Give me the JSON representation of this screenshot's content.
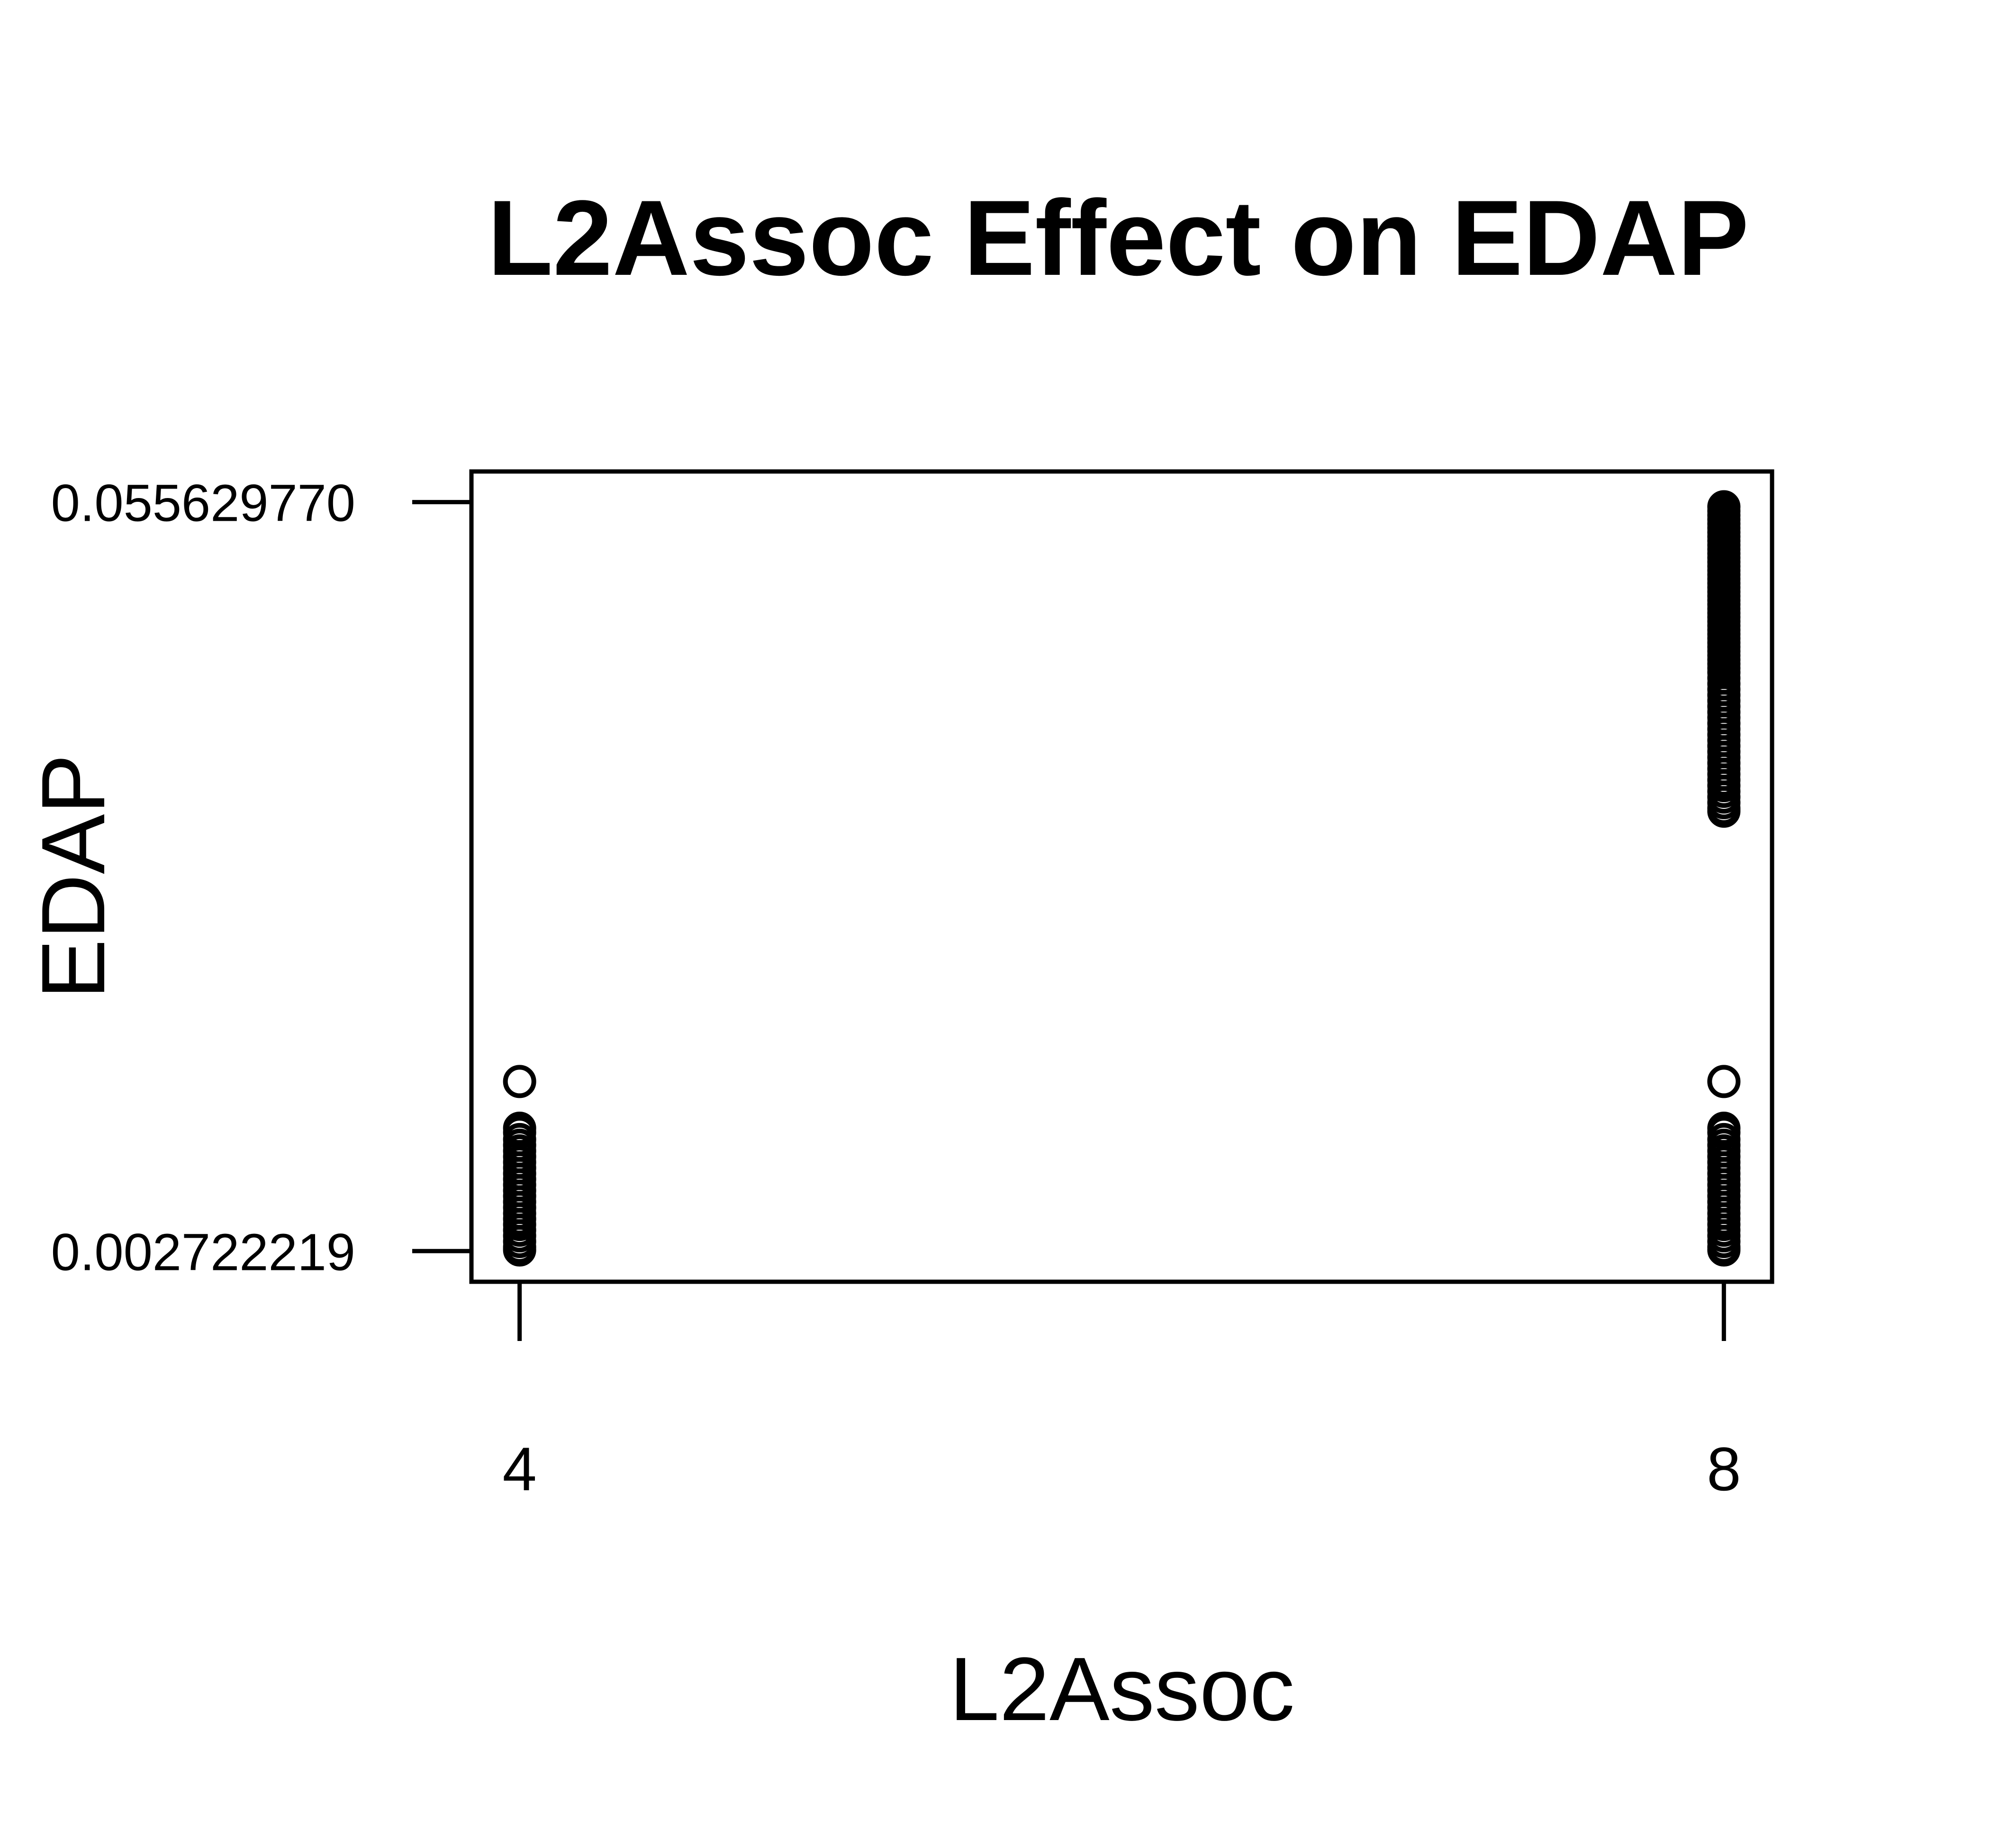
{
  "chart_data": {
    "type": "scatter",
    "title": "L2Assoc Effect on EDAP",
    "xlabel": "L2Assoc",
    "ylabel": "EDAP",
    "x_ticks": [
      "4",
      "8"
    ],
    "y_ticks": [
      "0.002722219",
      "0.055629770"
    ],
    "x_tick_values": [
      4,
      8
    ],
    "y_tick_values": [
      0.002722219,
      0.05562977
    ],
    "xlim": [
      3.84,
      8.16
    ],
    "ylim": [
      0.000555,
      0.057795
    ],
    "grid": false,
    "legend": "none",
    "series": [
      {
        "x": [
          4,
          4,
          4,
          4,
          4,
          4,
          4,
          4,
          4,
          4,
          4,
          4,
          4,
          4,
          4,
          4,
          4,
          4,
          4,
          4,
          4,
          4,
          4,
          4
        ],
        "y": [
          0.0147,
          0.0114,
          0.0111,
          0.0106,
          0.0102,
          0.0098,
          0.0094,
          0.009,
          0.0086,
          0.0082,
          0.0078,
          0.0074,
          0.007,
          0.0066,
          0.0062,
          0.0058,
          0.0054,
          0.005,
          0.0046,
          0.0042,
          0.0038,
          0.0034,
          0.003,
          0.0028
        ]
      },
      {
        "x": [
          8,
          8,
          8,
          8,
          8,
          8,
          8,
          8,
          8,
          8,
          8,
          8,
          8,
          8,
          8,
          8,
          8,
          8,
          8,
          8,
          8,
          8,
          8,
          8
        ],
        "y": [
          0.0147,
          0.0114,
          0.0111,
          0.0106,
          0.0102,
          0.0098,
          0.0094,
          0.009,
          0.0086,
          0.0082,
          0.0078,
          0.0074,
          0.007,
          0.0066,
          0.0062,
          0.0058,
          0.0054,
          0.005,
          0.0046,
          0.0042,
          0.0038,
          0.0034,
          0.003,
          0.0028
        ]
      },
      {
        "x": [
          8,
          8,
          8,
          8,
          8,
          8,
          8,
          8,
          8,
          8,
          8,
          8,
          8,
          8,
          8,
          8,
          8,
          8,
          8,
          8,
          8,
          8,
          8,
          8,
          8,
          8,
          8,
          8,
          8,
          8,
          8,
          8,
          8,
          8,
          8,
          8,
          8,
          8,
          8,
          8,
          8,
          8,
          8,
          8,
          8,
          8,
          8,
          8,
          8,
          8,
          8,
          8,
          8,
          8,
          8,
          8,
          8,
          8,
          8,
          8,
          8,
          8,
          8,
          8,
          8
        ],
        "y": [
          0.0553,
          0.055,
          0.0547,
          0.0544,
          0.0541,
          0.0538,
          0.0535,
          0.0532,
          0.0529,
          0.0526,
          0.0523,
          0.052,
          0.0517,
          0.0514,
          0.0511,
          0.0508,
          0.0505,
          0.0502,
          0.0499,
          0.0496,
          0.0493,
          0.049,
          0.0487,
          0.0484,
          0.0481,
          0.0478,
          0.0475,
          0.0472,
          0.0469,
          0.0466,
          0.0463,
          0.046,
          0.0457,
          0.0454,
          0.0451,
          0.0448,
          0.0445,
          0.0442,
          0.0439,
          0.0436,
          0.0432,
          0.0428,
          0.0424,
          0.042,
          0.0416,
          0.0412,
          0.0408,
          0.0404,
          0.04,
          0.0396,
          0.0392,
          0.0388,
          0.0384,
          0.038,
          0.0376,
          0.0372,
          0.0368,
          0.0364,
          0.036,
          0.0356,
          0.0352,
          0.0348,
          0.0344,
          0.034,
          0.0338
        ]
      }
    ]
  }
}
